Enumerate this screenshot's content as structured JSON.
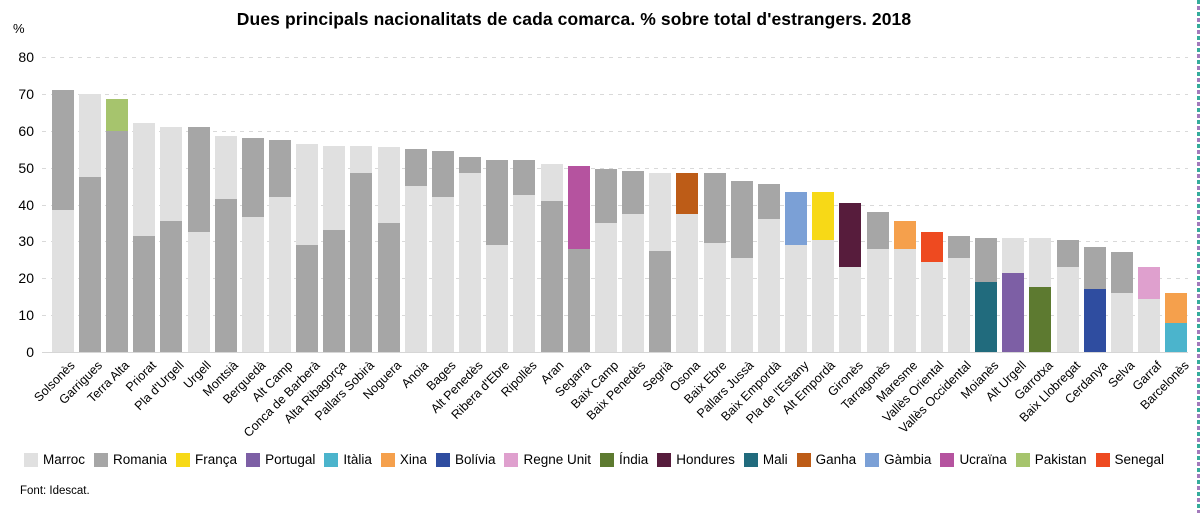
{
  "page": {
    "footer": "Font: Idescat."
  },
  "chart_data": {
    "type": "bar",
    "stacked": true,
    "title": "Dues principals nacionalitats de cada comarca. % sobre total d'estrangers. 2018",
    "ylabel": "%",
    "ylim": [
      0,
      80
    ],
    "y_ticks": [
      80,
      70,
      60,
      50,
      40,
      30,
      20,
      10,
      0
    ],
    "grid": "horizontal-dashed",
    "legend_position": "bottom",
    "legend": [
      "Marroc",
      "Romania",
      "França",
      "Portugal",
      "Itàlia",
      "Xina",
      "Bolívia",
      "Regne Unit",
      "Índia",
      "Hondures",
      "Mali",
      "Ganha",
      "Gàmbia",
      "Ucraïna",
      "Pakistan",
      "Senegal"
    ],
    "colors": {
      "Marroc": "#e0e0e0",
      "Romania": "#a6a6a6",
      "França": "#f7d917",
      "Portugal": "#7d5fa5",
      "Itàlia": "#4bb4cc",
      "Xina": "#f5a04c",
      "Bolívia": "#2f4da0",
      "Regne Unit": "#dfa0ce",
      "Índia": "#5d7a30",
      "Hondures": "#571c3c",
      "Mali": "#216b7d",
      "Ganha": "#bd5c17",
      "Gàmbia": "#7ba0d6",
      "Ucraïna": "#b5539f",
      "Pakistan": "#a6c46d",
      "Senegal": "#ee4a20"
    },
    "bars": [
      {
        "comarca": "Solsonès",
        "segments": [
          {
            "nationality": "Marroc",
            "value": 38.5
          },
          {
            "nationality": "Romania",
            "value": 32.5
          }
        ]
      },
      {
        "comarca": "Garrigues",
        "segments": [
          {
            "nationality": "Romania",
            "value": 47.5
          },
          {
            "nationality": "Marroc",
            "value": 22.5
          }
        ]
      },
      {
        "comarca": "Terra Alta",
        "segments": [
          {
            "nationality": "Romania",
            "value": 60
          },
          {
            "nationality": "Pakistan",
            "value": 8.5
          }
        ]
      },
      {
        "comarca": "Priorat",
        "segments": [
          {
            "nationality": "Romania",
            "value": 31.5
          },
          {
            "nationality": "Marroc",
            "value": 30.5
          }
        ]
      },
      {
        "comarca": "Pla d'Urgell",
        "segments": [
          {
            "nationality": "Romania",
            "value": 35.5
          },
          {
            "nationality": "Marroc",
            "value": 25.5
          }
        ]
      },
      {
        "comarca": "Urgell",
        "segments": [
          {
            "nationality": "Marroc",
            "value": 32.5
          },
          {
            "nationality": "Romania",
            "value": 28.5
          }
        ]
      },
      {
        "comarca": "Montsià",
        "segments": [
          {
            "nationality": "Romania",
            "value": 41.5
          },
          {
            "nationality": "Marroc",
            "value": 17
          }
        ]
      },
      {
        "comarca": "Berguedà",
        "segments": [
          {
            "nationality": "Marroc",
            "value": 36.5
          },
          {
            "nationality": "Romania",
            "value": 21.5
          }
        ]
      },
      {
        "comarca": "Alt Camp",
        "segments": [
          {
            "nationality": "Marroc",
            "value": 42
          },
          {
            "nationality": "Romania",
            "value": 15.5
          }
        ]
      },
      {
        "comarca": "Conca de Barberà",
        "segments": [
          {
            "nationality": "Romania",
            "value": 29
          },
          {
            "nationality": "Marroc",
            "value": 27.5
          }
        ]
      },
      {
        "comarca": "Alta Ribagorça",
        "segments": [
          {
            "nationality": "Romania",
            "value": 33
          },
          {
            "nationality": "Marroc",
            "value": 23
          }
        ]
      },
      {
        "comarca": "Pallars Sobirà",
        "segments": [
          {
            "nationality": "Romania",
            "value": 48.5
          },
          {
            "nationality": "Marroc",
            "value": 7.5
          }
        ]
      },
      {
        "comarca": "Noguera",
        "segments": [
          {
            "nationality": "Romania",
            "value": 35
          },
          {
            "nationality": "Marroc",
            "value": 20.5
          }
        ]
      },
      {
        "comarca": "Anoia",
        "segments": [
          {
            "nationality": "Marroc",
            "value": 45
          },
          {
            "nationality": "Romania",
            "value": 10
          }
        ]
      },
      {
        "comarca": "Bages",
        "segments": [
          {
            "nationality": "Marroc",
            "value": 42
          },
          {
            "nationality": "Romania",
            "value": 12.5
          }
        ]
      },
      {
        "comarca": "Alt Penedès",
        "segments": [
          {
            "nationality": "Marroc",
            "value": 48.5
          },
          {
            "nationality": "Romania",
            "value": 4.5
          }
        ]
      },
      {
        "comarca": "Ribera d'Ebre",
        "segments": [
          {
            "nationality": "Marroc",
            "value": 29
          },
          {
            "nationality": "Romania",
            "value": 23
          }
        ]
      },
      {
        "comarca": "Ripollès",
        "segments": [
          {
            "nationality": "Marroc",
            "value": 42.5
          },
          {
            "nationality": "Romania",
            "value": 9.5
          }
        ]
      },
      {
        "comarca": "Aran",
        "segments": [
          {
            "nationality": "Romania",
            "value": 41
          },
          {
            "nationality": "Marroc",
            "value": 10
          }
        ]
      },
      {
        "comarca": "Segarra",
        "segments": [
          {
            "nationality": "Romania",
            "value": 28
          },
          {
            "nationality": "Ucraïna",
            "value": 22.5
          }
        ]
      },
      {
        "comarca": "Baix Camp",
        "segments": [
          {
            "nationality": "Marroc",
            "value": 35
          },
          {
            "nationality": "Romania",
            "value": 14.5
          }
        ]
      },
      {
        "comarca": "Baix Penedès",
        "segments": [
          {
            "nationality": "Marroc",
            "value": 37.5
          },
          {
            "nationality": "Romania",
            "value": 11.5
          }
        ]
      },
      {
        "comarca": "Segrià",
        "segments": [
          {
            "nationality": "Romania",
            "value": 27.5
          },
          {
            "nationality": "Marroc",
            "value": 21
          }
        ]
      },
      {
        "comarca": "Osona",
        "segments": [
          {
            "nationality": "Marroc",
            "value": 37.5
          },
          {
            "nationality": "Ganha",
            "value": 11
          }
        ]
      },
      {
        "comarca": "Baix Ebre",
        "segments": [
          {
            "nationality": "Marroc",
            "value": 29.5
          },
          {
            "nationality": "Romania",
            "value": 19
          }
        ]
      },
      {
        "comarca": "Pallars Jussà",
        "segments": [
          {
            "nationality": "Marroc",
            "value": 25.5
          },
          {
            "nationality": "Romania",
            "value": 21
          }
        ]
      },
      {
        "comarca": "Baix Empordà",
        "segments": [
          {
            "nationality": "Marroc",
            "value": 36
          },
          {
            "nationality": "Romania",
            "value": 9.5
          }
        ]
      },
      {
        "comarca": "Pla de l'Estany",
        "segments": [
          {
            "nationality": "Marroc",
            "value": 29
          },
          {
            "nationality": "Gàmbia",
            "value": 14.5
          }
        ]
      },
      {
        "comarca": "Alt Empordà",
        "segments": [
          {
            "nationality": "Marroc",
            "value": 30.5
          },
          {
            "nationality": "França",
            "value": 13
          }
        ]
      },
      {
        "comarca": "Gironès",
        "segments": [
          {
            "nationality": "Marroc",
            "value": 23
          },
          {
            "nationality": "Hondures",
            "value": 17.5
          }
        ]
      },
      {
        "comarca": "Tarragonès",
        "segments": [
          {
            "nationality": "Marroc",
            "value": 28
          },
          {
            "nationality": "Romania",
            "value": 10
          }
        ]
      },
      {
        "comarca": "Maresme",
        "segments": [
          {
            "nationality": "Marroc",
            "value": 28
          },
          {
            "nationality": "Xina",
            "value": 7.5
          }
        ]
      },
      {
        "comarca": "Vallès Oriental",
        "segments": [
          {
            "nationality": "Marroc",
            "value": 24.5
          },
          {
            "nationality": "Senegal",
            "value": 8
          }
        ]
      },
      {
        "comarca": "Vallès Occidental",
        "segments": [
          {
            "nationality": "Marroc",
            "value": 25.5
          },
          {
            "nationality": "Romania",
            "value": 6
          }
        ]
      },
      {
        "comarca": "Moianès",
        "segments": [
          {
            "nationality": "Mali",
            "value": 19
          },
          {
            "nationality": "Romania",
            "value": 12
          }
        ]
      },
      {
        "comarca": "Alt Urgell",
        "segments": [
          {
            "nationality": "Portugal",
            "value": 21.5
          },
          {
            "nationality": "Marroc",
            "value": 9.5
          }
        ]
      },
      {
        "comarca": "Garrotxa",
        "segments": [
          {
            "nationality": "Índia",
            "value": 17.5
          },
          {
            "nationality": "Marroc",
            "value": 13.5
          }
        ]
      },
      {
        "comarca": "Baix Llobregat",
        "segments": [
          {
            "nationality": "Marroc",
            "value": 23
          },
          {
            "nationality": "Romania",
            "value": 7.5
          }
        ]
      },
      {
        "comarca": "Cerdanya",
        "segments": [
          {
            "nationality": "Bolívia",
            "value": 17
          },
          {
            "nationality": "Romania",
            "value": 11.5
          }
        ]
      },
      {
        "comarca": "Selva",
        "segments": [
          {
            "nationality": "Marroc",
            "value": 16
          },
          {
            "nationality": "Romania",
            "value": 11
          }
        ]
      },
      {
        "comarca": "Garraf",
        "segments": [
          {
            "nationality": "Marroc",
            "value": 14.5
          },
          {
            "nationality": "Regne Unit",
            "value": 8.5
          }
        ]
      },
      {
        "comarca": "Barcelonès",
        "segments": [
          {
            "nationality": "Itàlia",
            "value": 8
          },
          {
            "nationality": "Xina",
            "value": 8
          }
        ]
      }
    ]
  }
}
